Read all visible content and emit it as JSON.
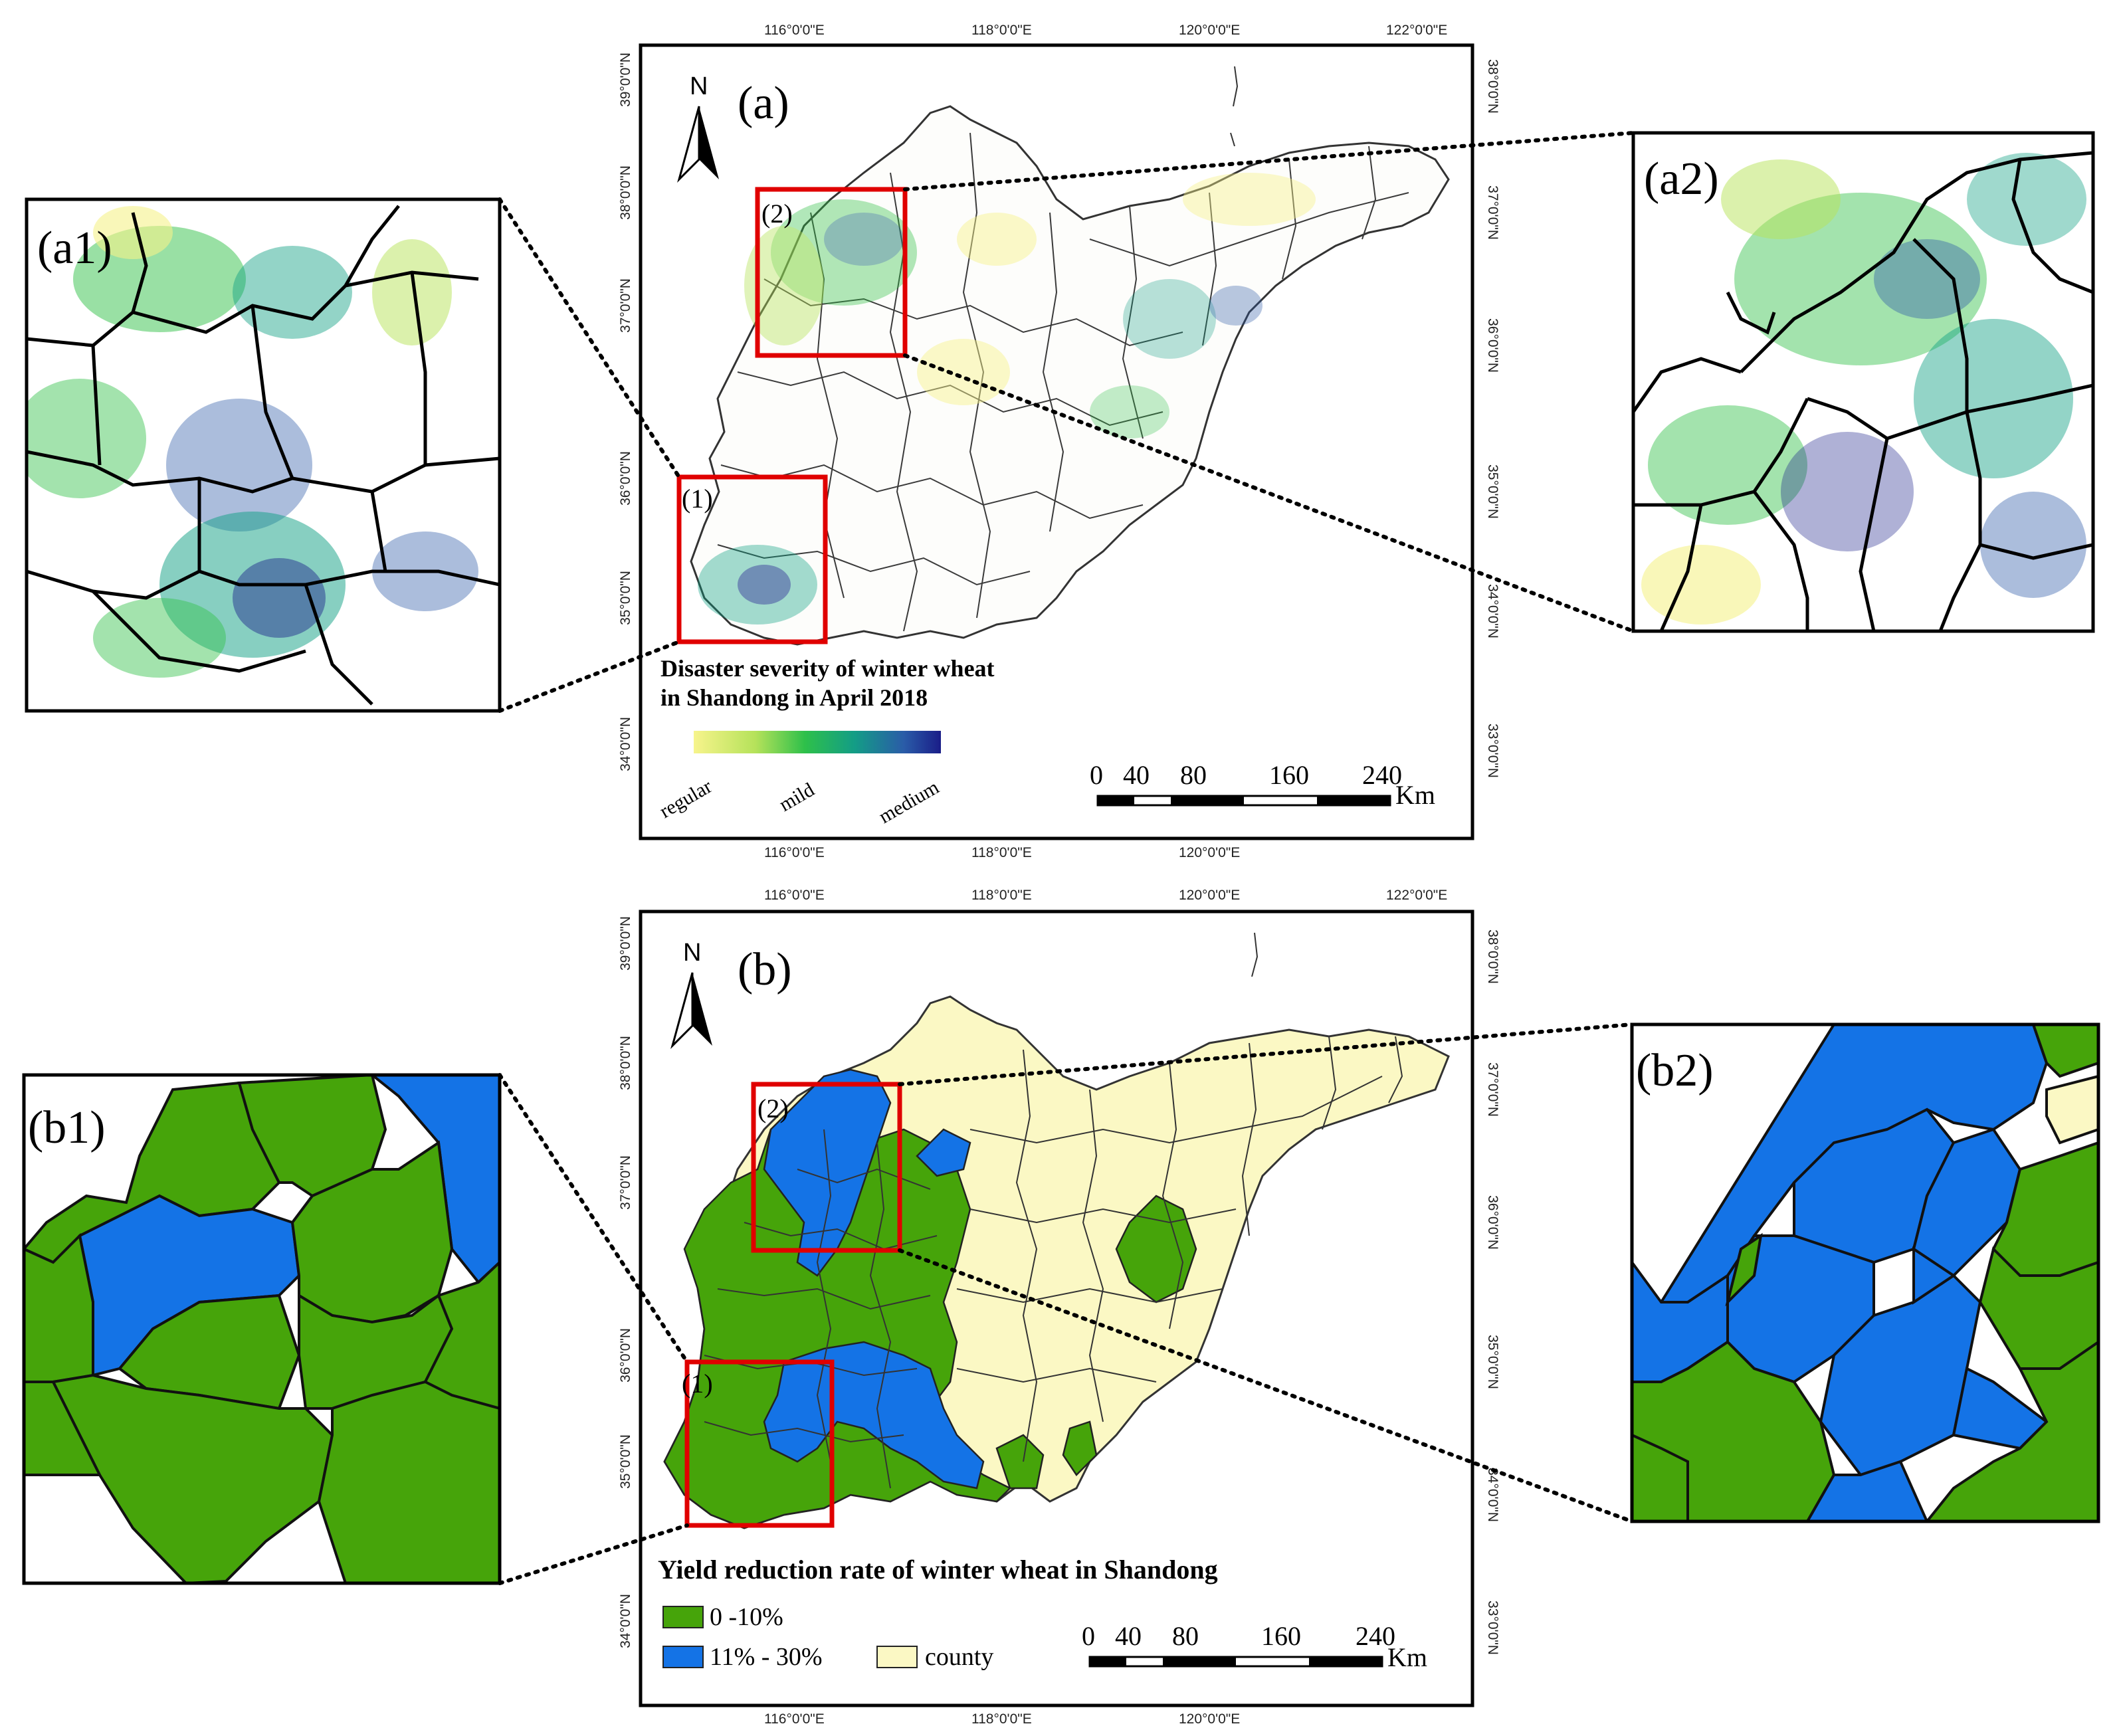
{
  "panel_a": {
    "label": "(a)",
    "north": "N",
    "box1_label": "(1)",
    "box2_label": "(2)",
    "title_line1": "Disaster severity of winter wheat",
    "title_line2": "in Shandong in April 2018",
    "legend_low": "regular",
    "legend_mid": "mild",
    "legend_high": "medium",
    "legend_colors": [
      "#f5f28a",
      "#b8e35a",
      "#34c24a",
      "#0f9f83",
      "#2e5aa8",
      "#1b1f8a"
    ],
    "scale_ticks": [
      "0",
      "40",
      "80",
      "160",
      "240"
    ],
    "scale_unit": "Km",
    "lon_labels": [
      "116°0'0\"E",
      "118°0'0\"E",
      "120°0'0\"E",
      "122°0'0\"E"
    ],
    "lat_left": [
      "39°0'0\"N",
      "38°0'0\"N",
      "37°0'0\"N",
      "36°0'0\"N",
      "35°0'0\"N",
      "34°0'0\"N"
    ],
    "lat_right": [
      "38°0'0\"N",
      "37°0'0\"N",
      "36°0'0\"N",
      "35°0'0\"N",
      "34°0'0\"N",
      "33°0'0\"N"
    ]
  },
  "panel_b": {
    "label": "(b)",
    "north": "N",
    "box1_label": "(1)",
    "box2_label": "(2)",
    "title": "Yield reduction rate of winter wheat in Shandong",
    "legend": [
      {
        "label": "0 -10%",
        "color": "#46a40a"
      },
      {
        "label": "11% - 30%",
        "color": "#1473e6"
      },
      {
        "label": "county",
        "color": "#fbf8c4"
      }
    ],
    "scale_ticks": [
      "0",
      "40",
      "80",
      "160",
      "240"
    ],
    "scale_unit": "Km",
    "lon_labels": [
      "116°0'0\"E",
      "118°0'0\"E",
      "120°0'0\"E",
      "122°0'0\"E"
    ],
    "lat_left": [
      "39°0'0\"N",
      "38°0'0\"N",
      "37°0'0\"N",
      "36°0'0\"N",
      "35°0'0\"N",
      "34°0'0\"N"
    ],
    "lat_right": [
      "38°0'0\"N",
      "37°0'0\"N",
      "36°0'0\"N",
      "35°0'0\"N",
      "34°0'0\"N",
      "33°0'0\"N"
    ]
  },
  "insets": {
    "a1": "(a1)",
    "a2": "(a2)",
    "b1": "(b1)",
    "b2": "(b2)"
  }
}
